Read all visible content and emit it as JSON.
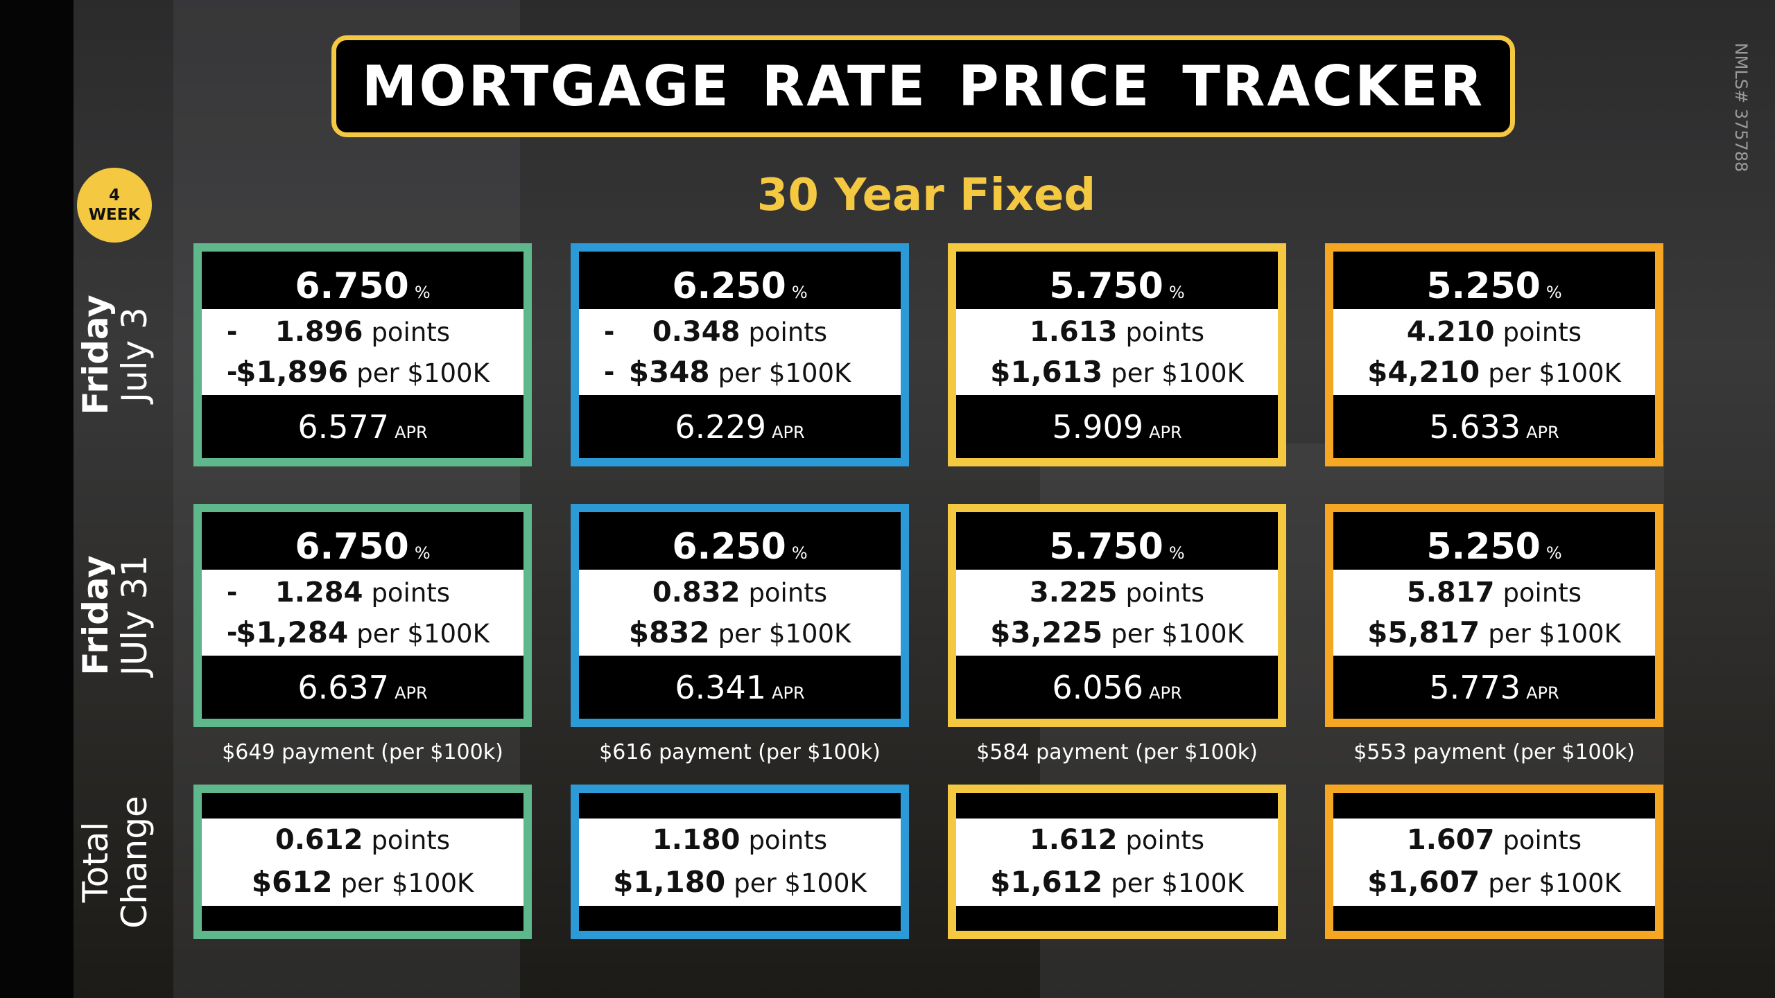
{
  "header": {
    "title": "MORTGAGE RATE PRICE TRACKER",
    "nmls": "NMLS# 375788",
    "badge": {
      "number": "4",
      "label": "WEEK"
    },
    "subtitle": "30 Year Fixed"
  },
  "units": {
    "rate": "%",
    "points": "points",
    "per": "per $100K",
    "apr": "APR"
  },
  "rows": [
    {
      "label": {
        "day": "Friday",
        "date": "July 3"
      },
      "cards": [
        {
          "rate": "6.750",
          "sign": "-",
          "points": "1.896",
          "dollars": "$1,896",
          "apr": "6.577"
        },
        {
          "rate": "6.250",
          "sign": "-",
          "points": "0.348",
          "dollars": "$348",
          "apr": "6.229"
        },
        {
          "rate": "5.750",
          "points": "1.613",
          "dollars": "$1,613",
          "apr": "5.909"
        },
        {
          "rate": "5.250",
          "points": "4.210",
          "dollars": "$4,210",
          "apr": "5.633"
        }
      ]
    },
    {
      "label": {
        "day": "Friday",
        "date": "JUly 31"
      },
      "cards": [
        {
          "rate": "6.750",
          "sign": "-",
          "points": "1.284",
          "dollars": "$1,284",
          "apr": "6.637"
        },
        {
          "rate": "6.250",
          "points": "0.832",
          "dollars": "$832",
          "apr": "6.341"
        },
        {
          "rate": "5.750",
          "points": "3.225",
          "dollars": "$3,225",
          "apr": "6.056"
        },
        {
          "rate": "5.250",
          "points": "5.817",
          "dollars": "$5,817",
          "apr": "5.773"
        }
      ]
    }
  ],
  "payments": [
    "$649 payment (per $100k)",
    "$616 payment (per $100k)",
    "$584 payment (per $100k)",
    "$553 payment (per $100k)"
  ],
  "total": {
    "label": {
      "line1": "Total",
      "line2": "Change"
    },
    "cards": [
      {
        "points": "0.612",
        "dollars": "$612"
      },
      {
        "points": "1.180",
        "dollars": "$1,180"
      },
      {
        "points": "1.612",
        "dollars": "$1,612"
      },
      {
        "points": "1.607",
        "dollars": "$1,607"
      }
    ]
  }
}
